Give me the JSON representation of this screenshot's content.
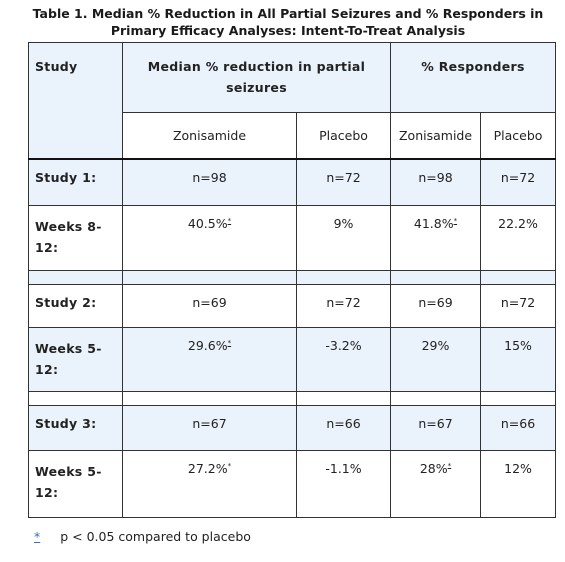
{
  "caption": "Table 1. Median % Reduction in All Partial Seizures and % Responders in Primary Efficacy Analyses: Intent-To-Treat Analysis",
  "header": {
    "study": "Study",
    "median_reduction": "Median % reduction in partial seizures",
    "responders": "% Responders",
    "zonisamide": "Zonisamide",
    "placebo": "Placebo"
  },
  "rows": [
    {
      "study_label": "Study 1:",
      "n": [
        "n=98",
        "n=72",
        "n=98",
        "n=72"
      ],
      "weeks_label": "Weeks 8-12:",
      "values": [
        "40.5%",
        "9%",
        "41.8%",
        "22.2%"
      ]
    },
    {
      "study_label": "Study 2:",
      "n": [
        "n=69",
        "n=72",
        "n=69",
        "n=72"
      ],
      "weeks_label": "Weeks 5-12:",
      "values": [
        "29.6%",
        "-3.2%",
        "29%",
        "15%"
      ]
    },
    {
      "study_label": "Study 3:",
      "n": [
        "n=67",
        "n=66",
        "n=67",
        "n=66"
      ],
      "weeks_label": "Weeks 5-12:",
      "values": [
        "27.2%",
        "-1.1%",
        "28%",
        "12%"
      ]
    }
  ],
  "footnote": {
    "marker": "*",
    "text": "p < 0.05 compared to placebo"
  }
}
